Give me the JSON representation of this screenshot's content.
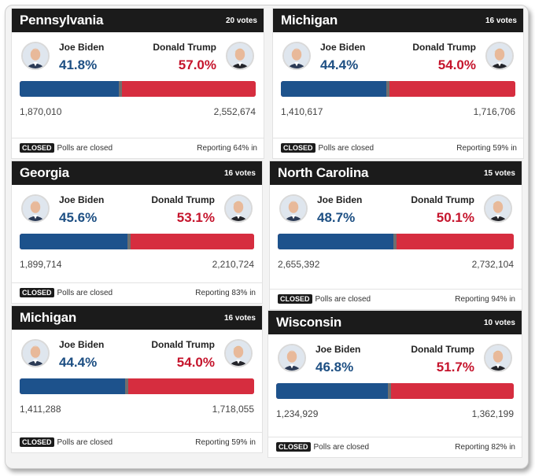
{
  "candidates": {
    "left": "Joe Biden",
    "right": "Donald Trump"
  },
  "status": {
    "badge": "CLOSED",
    "text": "Polls are closed"
  },
  "colors": {
    "biden": "#1d528c",
    "trump": "#d62d3f",
    "header": "#1b1b1b"
  },
  "cards": [
    {
      "state": "Pennsylvania",
      "votes": "20 votes",
      "biden_pct": "41.8%",
      "trump_pct": "57.0%",
      "biden_count": "1,870,010",
      "trump_count": "2,552,674",
      "reporting": "Reporting 64% in",
      "biden_share": 0.42
    },
    {
      "state": "Michigan",
      "votes": "16 votes",
      "biden_pct": "44.4%",
      "trump_pct": "54.0%",
      "biden_count": "1,410,617",
      "trump_count": "1,716,706",
      "reporting": "Reporting 59% in",
      "biden_share": 0.45
    },
    {
      "state": "Georgia",
      "votes": "16 votes",
      "biden_pct": "45.6%",
      "trump_pct": "53.1%",
      "biden_count": "1,899,714",
      "trump_count": "2,210,724",
      "reporting": "Reporting 83% in",
      "biden_share": 0.46
    },
    {
      "state": "North Carolina",
      "votes": "15 votes",
      "biden_pct": "48.7%",
      "trump_pct": "50.1%",
      "biden_count": "2,655,392",
      "trump_count": "2,732,104",
      "reporting": "Reporting 94% in",
      "biden_share": 0.49
    },
    {
      "state": "Michigan",
      "votes": "16 votes",
      "biden_pct": "44.4%",
      "trump_pct": "54.0%",
      "biden_count": "1,411,288",
      "trump_count": "1,718,055",
      "reporting": "Reporting 59% in",
      "biden_share": 0.45
    },
    {
      "state": "Wisconsin",
      "votes": "10 votes",
      "biden_pct": "46.8%",
      "trump_pct": "51.7%",
      "biden_count": "1,234,929",
      "trump_count": "1,362,199",
      "reporting": "Reporting 82% in",
      "biden_share": 0.47
    }
  ]
}
